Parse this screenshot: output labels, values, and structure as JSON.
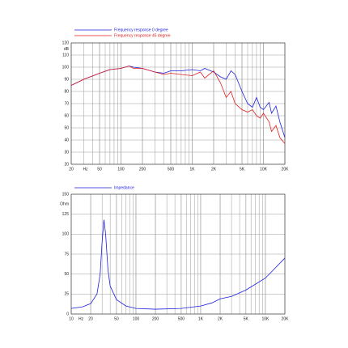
{
  "chart_data": [
    {
      "type": "line",
      "log_x": true,
      "grid": true,
      "legend": "top-left",
      "ylabel": "dB",
      "xlabel": "Hz",
      "xlim": [
        20,
        20000
      ],
      "ylim": [
        20,
        120
      ],
      "xticks": [
        20,
        50,
        100,
        200,
        500,
        {
          "value": 1000,
          "label": "1K"
        },
        {
          "value": 2000,
          "label": "2K"
        },
        {
          "value": 5000,
          "label": "5K"
        },
        {
          "value": 10000,
          "label": "10K"
        },
        {
          "value": 20000,
          "label": "20K"
        }
      ],
      "yticks": [
        20,
        30,
        40,
        50,
        60,
        70,
        80,
        90,
        100,
        110,
        120
      ],
      "x": [
        20,
        30,
        50,
        70,
        100,
        130,
        150,
        200,
        300,
        400,
        500,
        700,
        1000,
        1300,
        1500,
        2000,
        2500,
        3000,
        3500,
        4000,
        5000,
        6000,
        7000,
        8000,
        9000,
        10000,
        12000,
        13000,
        15000,
        17000,
        20000
      ],
      "series": [
        {
          "name": "Frequency response 0 degree",
          "color": "#1f1fe0",
          "values": [
            85,
            90,
            95,
            98,
            99,
            101,
            100,
            99,
            96,
            95,
            97,
            97,
            98,
            97,
            99,
            96,
            92,
            90,
            97,
            94,
            80,
            70,
            67,
            75,
            67,
            65,
            71,
            62,
            68,
            55,
            42
          ]
        },
        {
          "name": "Frequency response 45 degree",
          "color": "#e01f1f",
          "values": [
            85,
            90,
            95,
            98,
            99,
            101,
            99,
            99,
            96,
            94,
            95,
            94,
            93,
            96,
            91,
            97,
            87,
            75,
            80,
            70,
            65,
            63,
            65,
            60,
            58,
            62,
            55,
            47,
            52,
            42,
            37
          ]
        }
      ]
    },
    {
      "type": "line",
      "log_x": true,
      "grid": true,
      "legend": "top-left",
      "ylabel": "Ohm",
      "xlabel": "Hz",
      "xlim": [
        10,
        20000
      ],
      "ylim": [
        0,
        150
      ],
      "xticks": [
        10,
        20,
        50,
        100,
        200,
        500,
        {
          "value": 1000,
          "label": "1K"
        },
        {
          "value": 2000,
          "label": "2K"
        },
        {
          "value": 5000,
          "label": "5K"
        },
        {
          "value": 10000,
          "label": "10K"
        },
        {
          "value": 20000,
          "label": "20K"
        }
      ],
      "yticks": [
        0,
        25,
        50,
        75,
        100,
        125,
        150
      ],
      "x": [
        10,
        15,
        20,
        25,
        28,
        30,
        32,
        34,
        37,
        40,
        50,
        70,
        100,
        200,
        500,
        1000,
        1500,
        2000,
        3000,
        5000,
        10000,
        20000
      ],
      "series": [
        {
          "name": "Impedance",
          "color": "#1f1fe0",
          "values": [
            7,
            9,
            13,
            25,
            50,
            90,
            118,
            100,
            55,
            35,
            18,
            10,
            7,
            6,
            7,
            10,
            14,
            19,
            22,
            30,
            45,
            70
          ]
        }
      ]
    }
  ]
}
